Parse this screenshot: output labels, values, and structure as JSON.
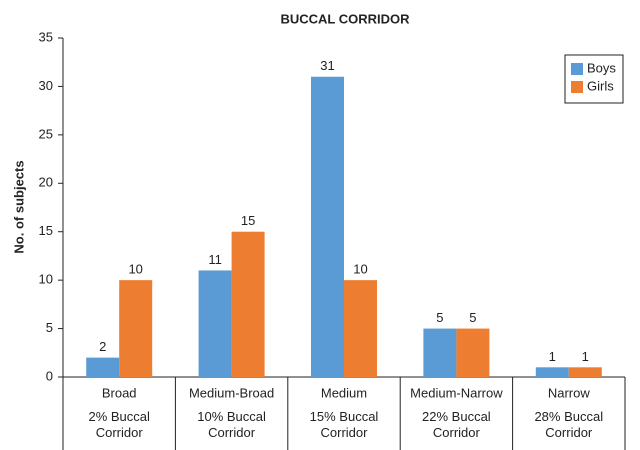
{
  "chart_data": {
    "type": "bar",
    "title": "BUCCAL CORRIDOR",
    "y_label": "No. of subjects",
    "categories": [
      "Broad",
      "Medium-Broad",
      "Medium",
      "Medium-Narrow",
      "Narrow"
    ],
    "category_notes": [
      "2% Buccal Corridor",
      "10% Buccal Corridor",
      "15% Buccal Corridor",
      "22% Buccal Corridor",
      "28% Buccal Corridor"
    ],
    "series": [
      {
        "name": "Boys",
        "color": "#5b9bd5",
        "values": [
          2,
          11,
          31,
          5,
          1
        ]
      },
      {
        "name": "Girls",
        "color": "#ed7d31",
        "values": [
          10,
          15,
          10,
          5,
          1
        ]
      }
    ],
    "ylim": [
      0,
      35
    ],
    "yticks": [
      0,
      5,
      10,
      15,
      20,
      25,
      30,
      35
    ],
    "grid": false,
    "legend": "top-right"
  }
}
